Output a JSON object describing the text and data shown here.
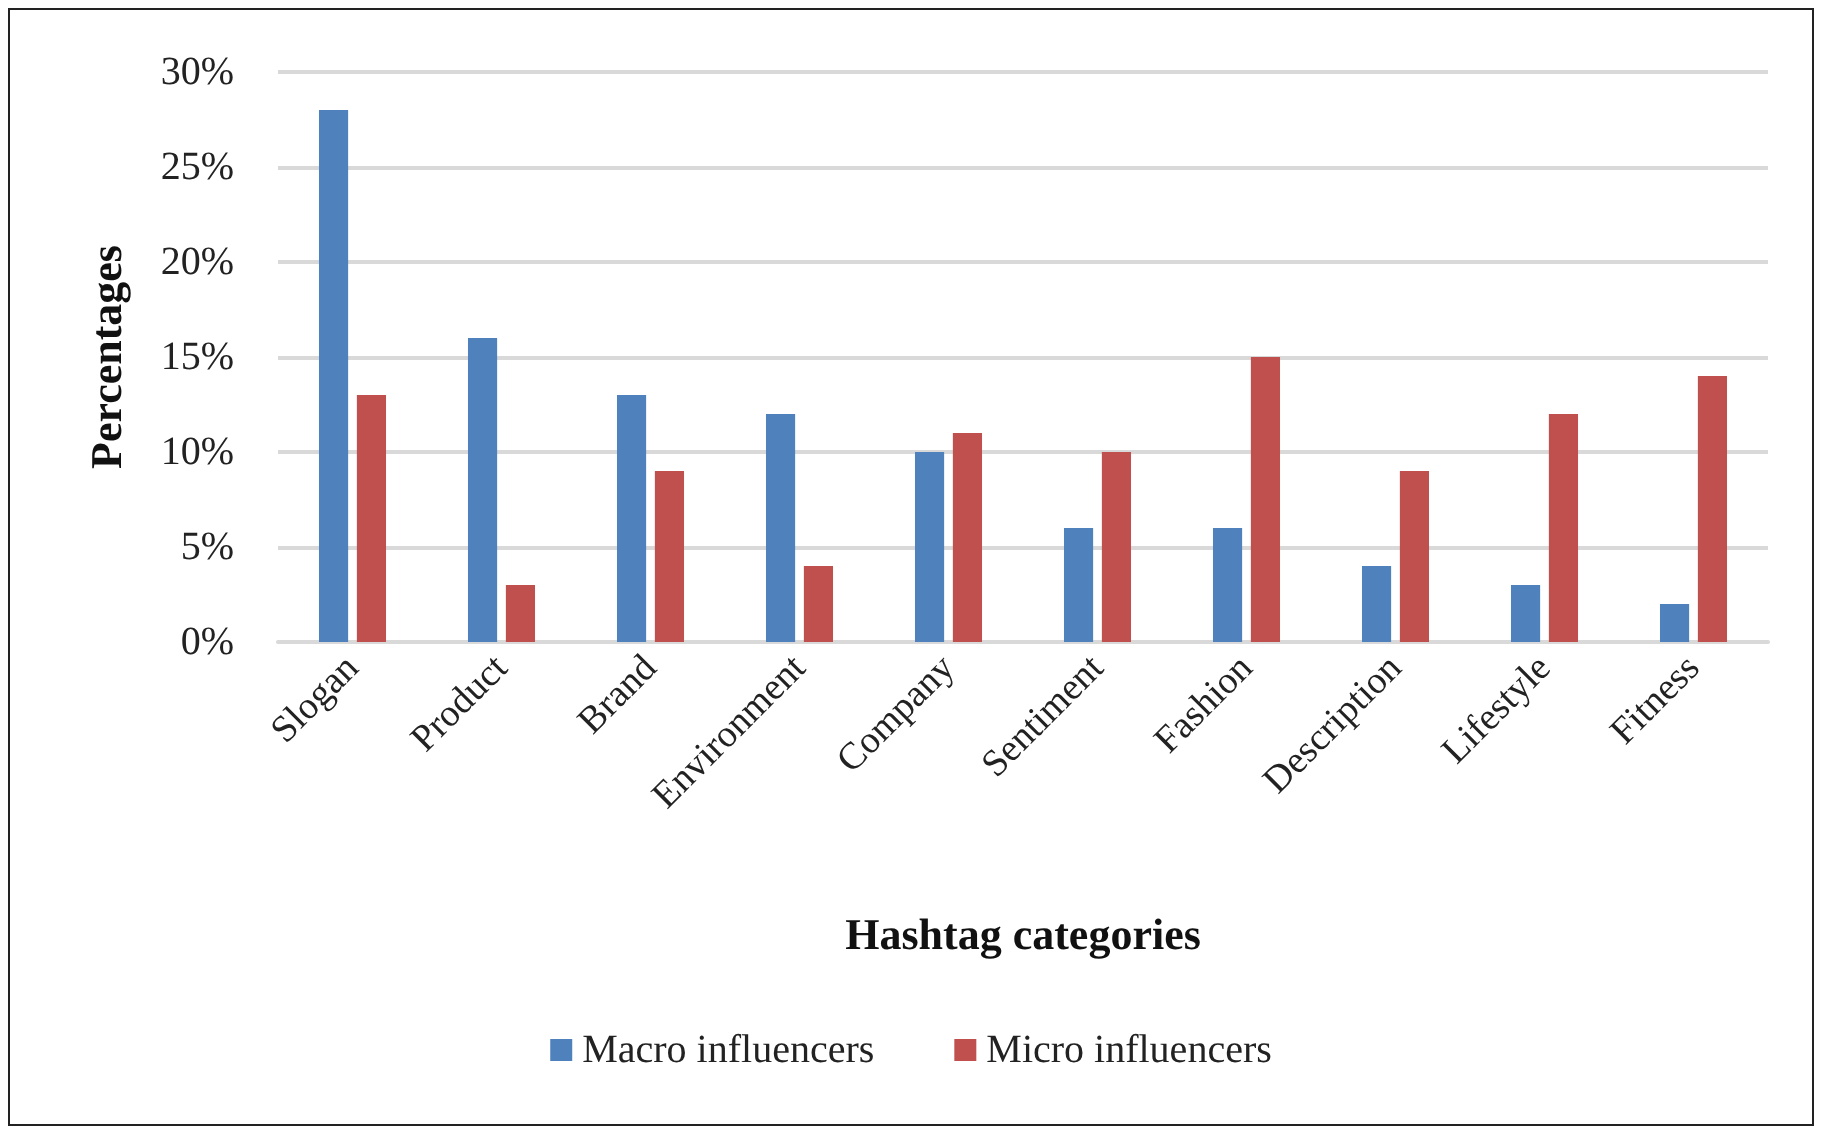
{
  "chart_data": {
    "type": "bar",
    "xlabel": "Hashtag categories",
    "ylabel": "Percentages",
    "categories": [
      "Slogan",
      "Product",
      "Brand",
      "Environment",
      "Company",
      "Sentiment",
      "Fashion",
      "Description",
      "Lifestyle",
      "Fitness"
    ],
    "series": [
      {
        "name": "Macro influencers",
        "color": "#4f81bd",
        "values": [
          28,
          16,
          13,
          12,
          10,
          6,
          6,
          4,
          3,
          2
        ]
      },
      {
        "name": "Micro influencers",
        "color": "#c0504d",
        "values": [
          13,
          3,
          9,
          4,
          11,
          10,
          15,
          9,
          12,
          14
        ]
      }
    ],
    "ylim": [
      0,
      30
    ],
    "yticks": [
      {
        "value": 0,
        "label": "0%"
      },
      {
        "value": 5,
        "label": "5%"
      },
      {
        "value": 10,
        "label": "10%"
      },
      {
        "value": 15,
        "label": "15%"
      },
      {
        "value": 20,
        "label": "20%"
      },
      {
        "value": 25,
        "label": "25%"
      },
      {
        "value": 30,
        "label": "30%"
      }
    ],
    "grid": "y",
    "legend": "bottom"
  }
}
